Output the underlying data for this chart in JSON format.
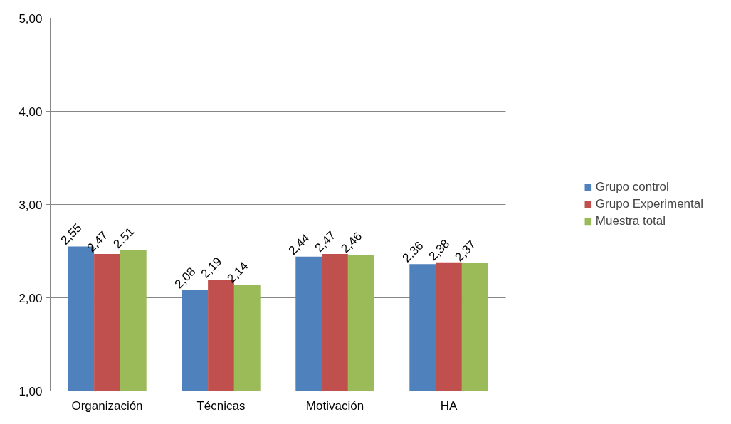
{
  "chart_data": {
    "type": "bar",
    "categories": [
      "Organización",
      "Técnicas",
      "Motivación",
      "HA"
    ],
    "series": [
      {
        "name": "Grupo control",
        "color": "#4f81bd",
        "values": [
          2.55,
          2.08,
          2.44,
          2.36
        ],
        "value_labels": [
          "2,55",
          "2,08",
          "2,44",
          "2,36"
        ]
      },
      {
        "name": "Grupo Experimental",
        "color": "#c0504d",
        "values": [
          2.47,
          2.19,
          2.47,
          2.38
        ],
        "value_labels": [
          "2,47",
          "2,19",
          "2,47",
          "2,38"
        ]
      },
      {
        "name": "Muestra total",
        "color": "#9bbb59",
        "values": [
          2.51,
          2.14,
          2.46,
          2.37
        ],
        "value_labels": [
          "2,51",
          "2,14",
          "2,46",
          "2,37"
        ]
      }
    ],
    "ylim": [
      1,
      5
    ],
    "yticks": [
      {
        "value": 1,
        "label": "1,00"
      },
      {
        "value": 2,
        "label": "2,00"
      },
      {
        "value": 3,
        "label": "3,00"
      },
      {
        "value": 4,
        "label": "4,00"
      },
      {
        "value": 5,
        "label": "5,00"
      }
    ],
    "grid": "y",
    "legend": "right"
  }
}
